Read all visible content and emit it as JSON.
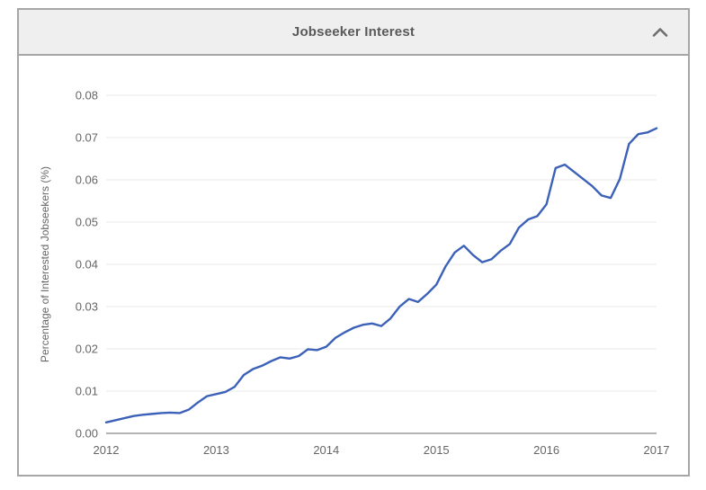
{
  "header": {
    "title": "Jobseeker Interest",
    "collapse_icon": "chevron-up-icon"
  },
  "chart_data": {
    "type": "line",
    "title": "Jobseeker Interest",
    "xlabel": "",
    "ylabel": "Percentage of Interested Jobseekers (%)",
    "x_tick_labels": [
      "2012",
      "2013",
      "2014",
      "2015",
      "2016",
      "2017"
    ],
    "y_tick_labels": [
      "0.00",
      "0.01",
      "0.02",
      "0.03",
      "0.04",
      "0.05",
      "0.06",
      "0.07",
      "0.08"
    ],
    "ylim": [
      0,
      0.08
    ],
    "x_range": [
      "Jan 2012",
      "Jan 2017"
    ],
    "cadence": "monthly",
    "grid": "horizontal",
    "legend": "none",
    "line_color": "#3c61b8",
    "series": [
      {
        "name": "Percentage of Interested Jobseekers (%)",
        "values": [
          0.0026,
          0.0031,
          0.0036,
          0.0041,
          0.0044,
          0.0046,
          0.0048,
          0.0049,
          0.0048,
          0.0056,
          0.0073,
          0.0088,
          0.0093,
          0.0098,
          0.011,
          0.0138,
          0.0152,
          0.016,
          0.0171,
          0.018,
          0.0177,
          0.0183,
          0.0199,
          0.0197,
          0.0205,
          0.0226,
          0.0239,
          0.025,
          0.0257,
          0.026,
          0.0254,
          0.0272,
          0.03,
          0.0318,
          0.0311,
          0.033,
          0.0352,
          0.0395,
          0.0428,
          0.0444,
          0.0422,
          0.0405,
          0.0412,
          0.0432,
          0.0448,
          0.0487,
          0.0506,
          0.0514,
          0.0542,
          0.0628,
          0.0636,
          0.0619,
          0.0602,
          0.0585,
          0.0563,
          0.0557,
          0.0602,
          0.0685,
          0.0708,
          0.0712,
          0.0722
        ]
      }
    ]
  },
  "colors": {
    "panel_border": "#a6a6a6",
    "header_bg": "#f0eff0",
    "header_text": "#595959",
    "chevron": "#6e6e6e",
    "axis_text": "#666666",
    "gridline": "#e8e8e8",
    "axis_line": "#b3b3b3",
    "chart_bg": "#ffffff"
  }
}
